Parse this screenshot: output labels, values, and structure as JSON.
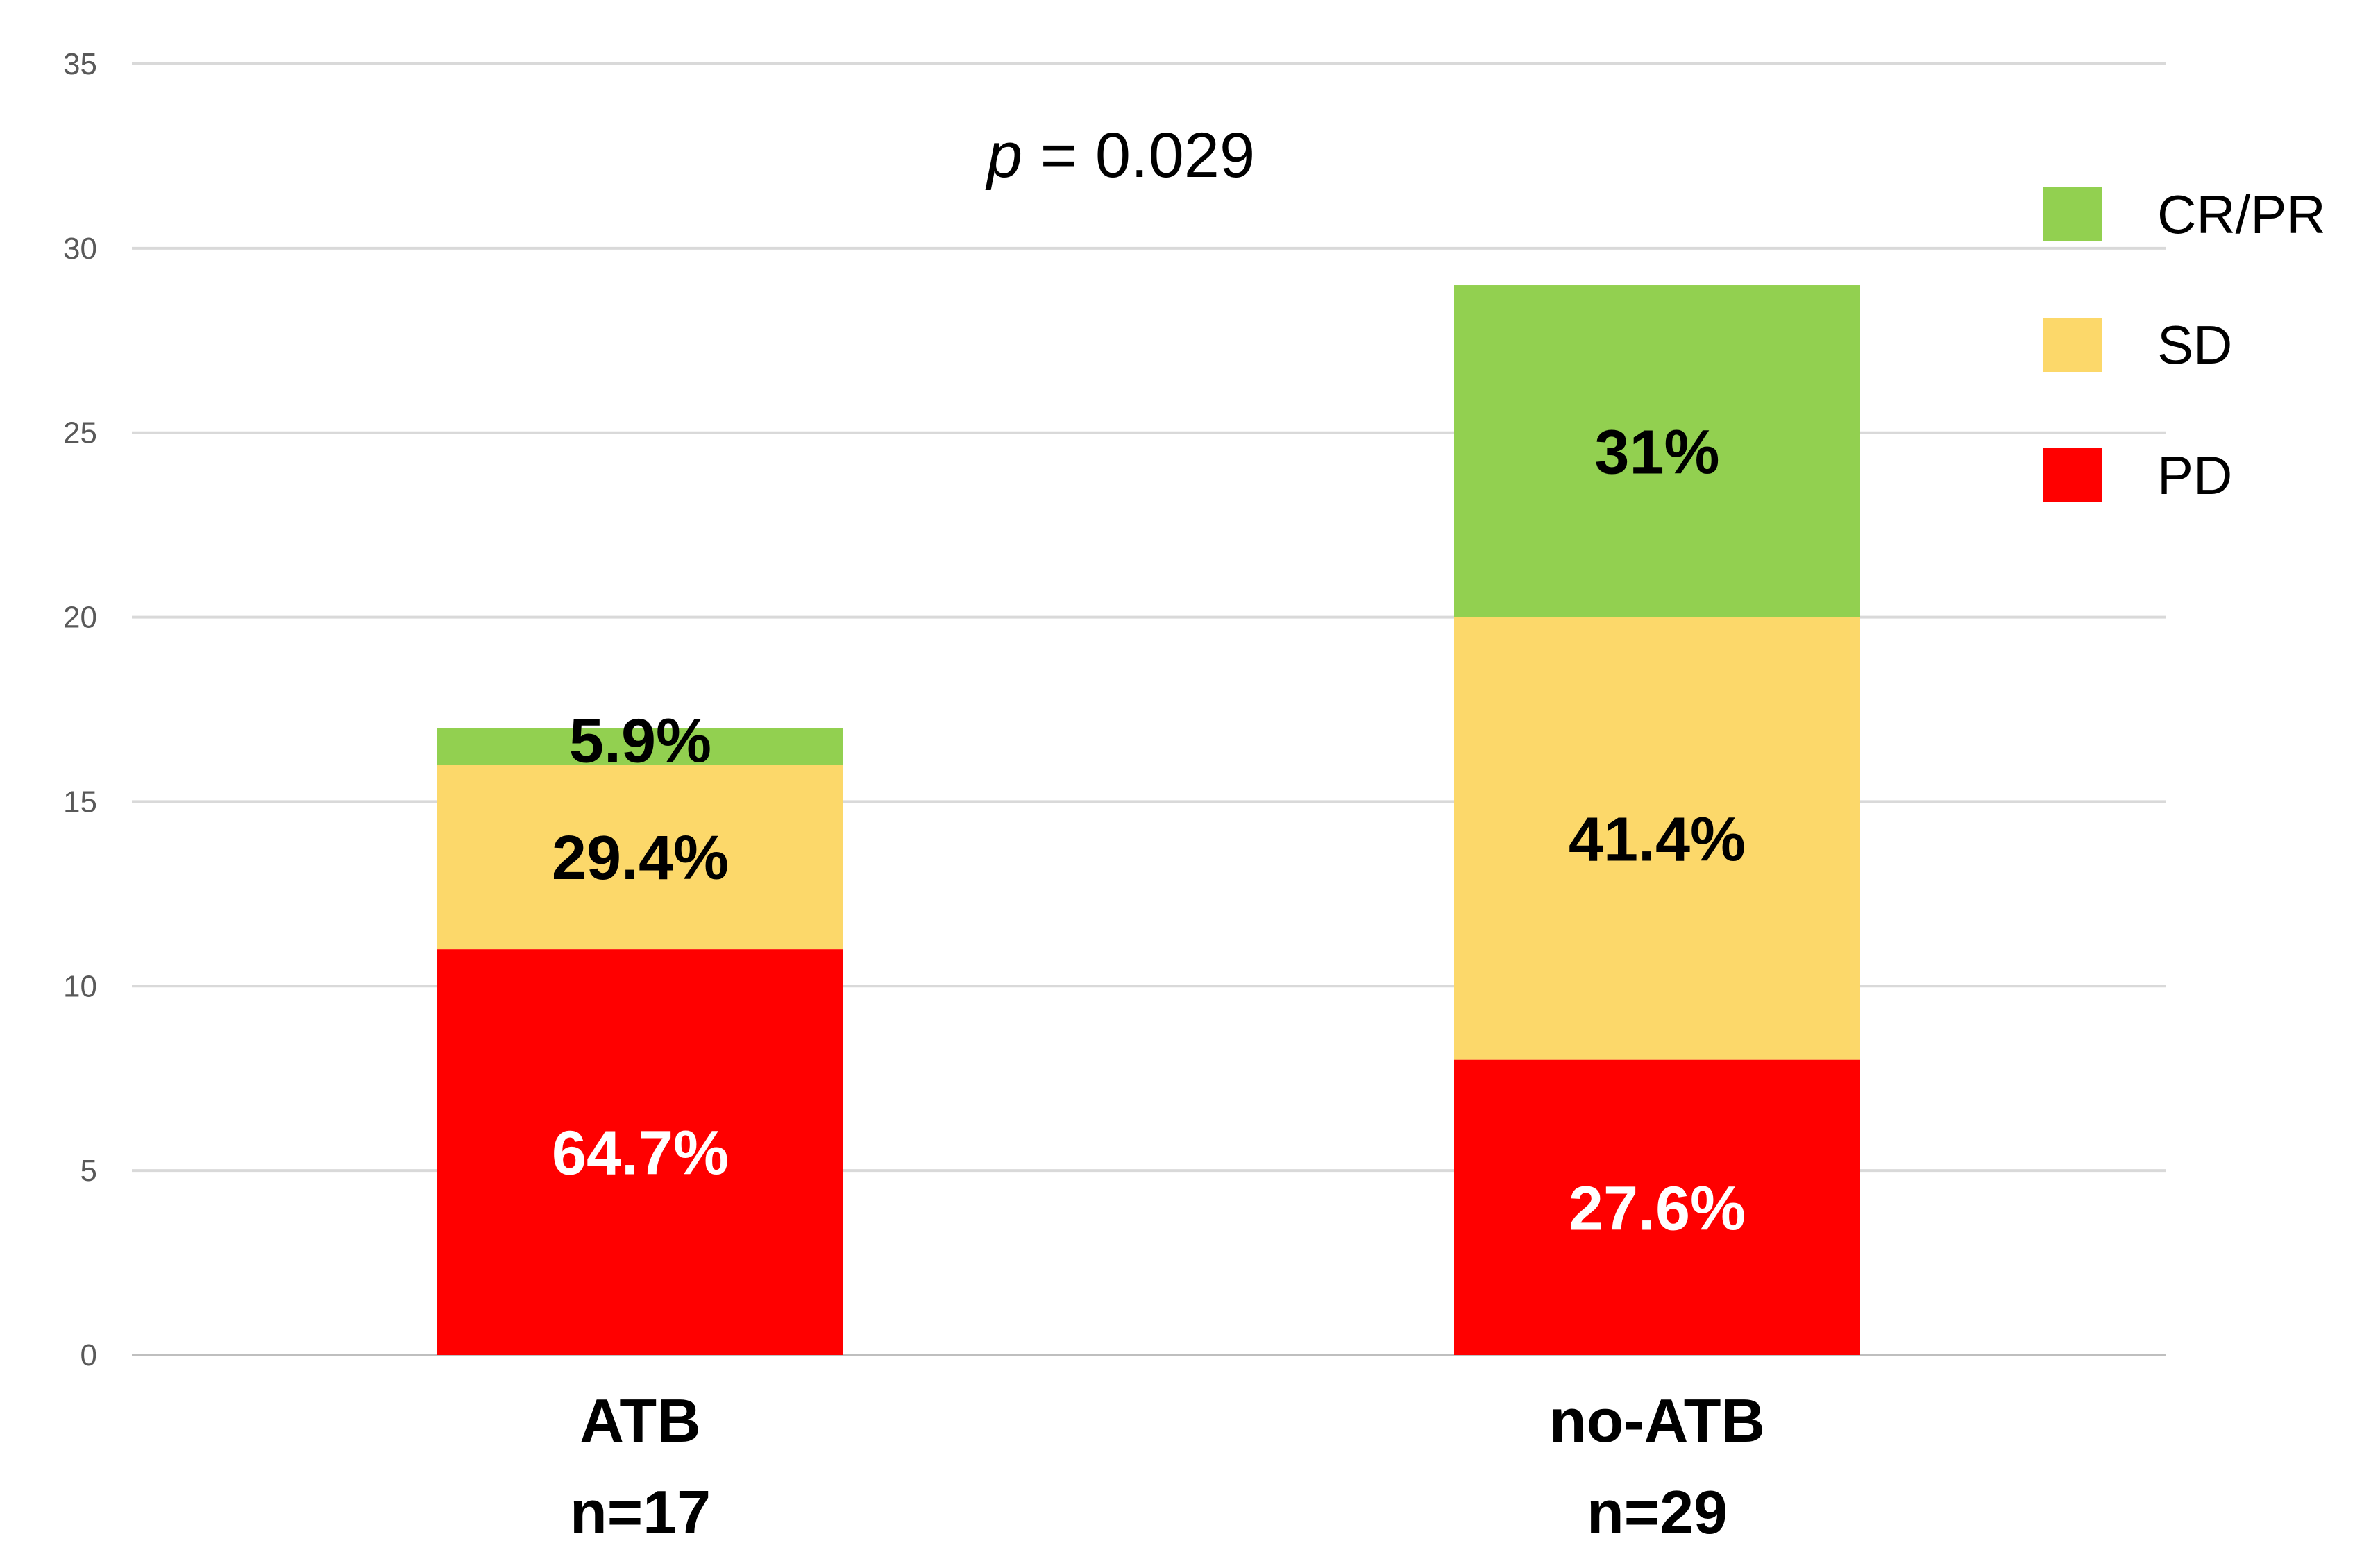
{
  "chart_data": {
    "type": "bar",
    "stacked": true,
    "title": "",
    "xlabel": "",
    "ylabel": "",
    "ylim": [
      0,
      35
    ],
    "yticks": [
      0,
      5,
      10,
      15,
      20,
      25,
      30,
      35
    ],
    "grid": true,
    "legend_position": "top-right",
    "categories": [
      {
        "name": "ATB",
        "n_label": "n=17"
      },
      {
        "name": "no-ATB",
        "n_label": "n=29"
      }
    ],
    "series": [
      {
        "name": "PD",
        "color": "#ff0000",
        "label_color": "#ffffff",
        "values": [
          11,
          8
        ],
        "labels": [
          "64.7%",
          "27.6%"
        ]
      },
      {
        "name": "SD",
        "color": "#fcd86a",
        "label_color": "#000000",
        "values": [
          5,
          12
        ],
        "labels": [
          "29.4%",
          "41.4%"
        ]
      },
      {
        "name": "CR/PR",
        "color": "#92d050",
        "label_color": "#000000",
        "values": [
          1,
          9
        ],
        "labels": [
          "5.9%",
          "31%"
        ]
      }
    ],
    "legend_order": [
      "CR/PR",
      "SD",
      "PD"
    ],
    "annotation": {
      "italic_part": "p",
      "rest": " = 0.029"
    }
  }
}
